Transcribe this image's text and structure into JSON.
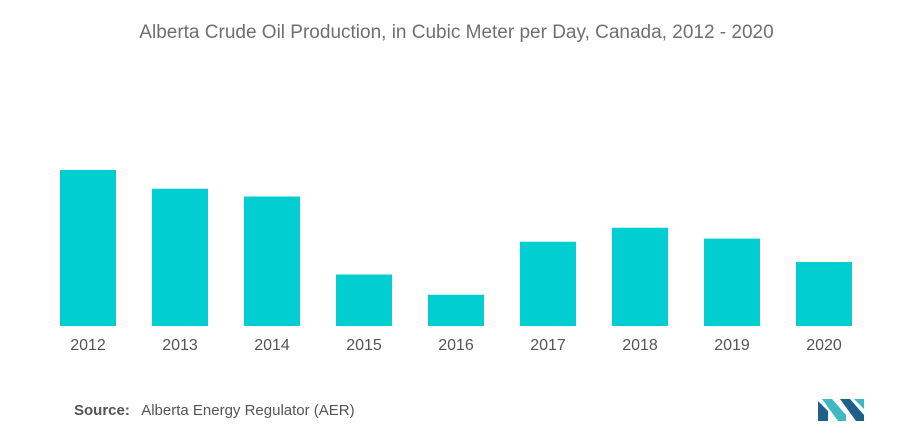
{
  "chart_data": {
    "type": "bar",
    "title": "Alberta Crude Oil Production, in Cubic Meter per Day, Canada, 2012 - 2020",
    "xlabel": "",
    "ylabel": "",
    "categories": [
      "2012",
      "2013",
      "2014",
      "2015",
      "2016",
      "2017",
      "2018",
      "2019",
      "2020"
    ],
    "values": [
      100,
      88,
      83,
      33,
      20,
      54,
      63,
      56,
      41
    ],
    "ylim": [
      0,
      100
    ],
    "grid": false,
    "legend": "none",
    "bar_color": "#00ced1"
  },
  "source": {
    "label": "Source:",
    "text": "Alberta Energy Regulator (AER)"
  },
  "logo": {
    "icon": "mordor-logo-icon",
    "color_dark": "#1f5f8b",
    "color_light": "#3fb8c4"
  }
}
